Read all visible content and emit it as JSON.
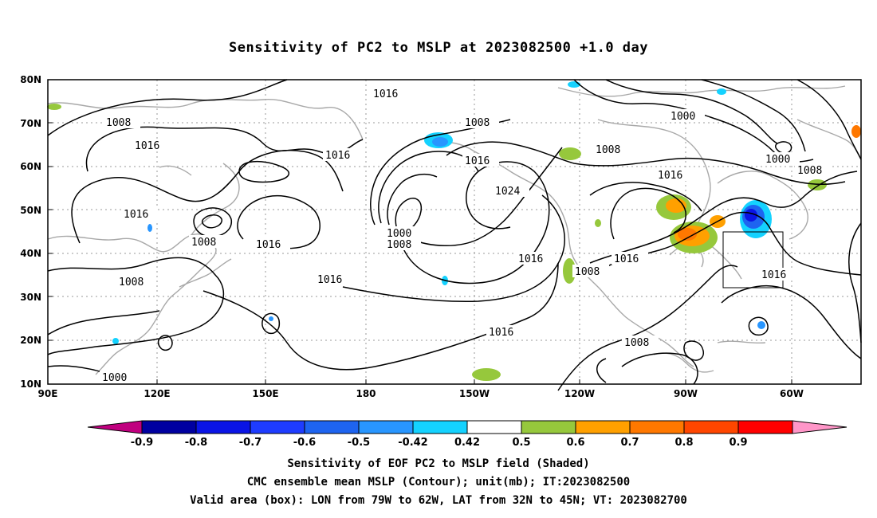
{
  "title": "Sensitivity of PC2 to MSLP at 2023082500 +1.0 day",
  "map": {
    "lat_labels": [
      "80N",
      "70N",
      "60N",
      "50N",
      "40N",
      "30N",
      "20N",
      "10N"
    ],
    "lon_labels": [
      "90E",
      "120E",
      "150E",
      "180",
      "150W",
      "120W",
      "90W",
      "60W"
    ],
    "contour_labels": [
      {
        "id": "c1",
        "text": "1016"
      },
      {
        "id": "c2",
        "text": "1008"
      },
      {
        "id": "c3",
        "text": "1016"
      },
      {
        "id": "c4",
        "text": "1008"
      },
      {
        "id": "c5",
        "text": "1000"
      },
      {
        "id": "c6",
        "text": "1016"
      },
      {
        "id": "c7",
        "text": "1016"
      },
      {
        "id": "c8",
        "text": "1008"
      },
      {
        "id": "c9",
        "text": "1016"
      },
      {
        "id": "c10",
        "text": "1024"
      },
      {
        "id": "c11",
        "text": "1000"
      },
      {
        "id": "c12",
        "text": "1008"
      },
      {
        "id": "c13",
        "text": "1016"
      },
      {
        "id": "c14",
        "text": "1008"
      },
      {
        "id": "c15",
        "text": "1016"
      },
      {
        "id": "c16",
        "text": "1008"
      },
      {
        "id": "c17",
        "text": "1016"
      },
      {
        "id": "c18",
        "text": "1016"
      },
      {
        "id": "c19",
        "text": "1008"
      },
      {
        "id": "c20",
        "text": "1008"
      },
      {
        "id": "c21",
        "text": "1016"
      },
      {
        "id": "c22",
        "text": "1000"
      },
      {
        "id": "c23",
        "text": "1008"
      },
      {
        "id": "c24",
        "text": "1000"
      },
      {
        "id": "c25",
        "text": "1016"
      }
    ],
    "valid_box": {
      "lon_west": "79W",
      "lon_east": "62W",
      "lat_south": "32N",
      "lat_north": "45N"
    }
  },
  "colorbar": {
    "labels": [
      "-0.9",
      "-0.8",
      "-0.7",
      "-0.6",
      "-0.5",
      "-0.42",
      "0.42",
      "0.5",
      "0.6",
      "0.7",
      "0.8",
      "0.9"
    ],
    "colors": [
      "#c0007f",
      "#0000a0",
      "#0a14e6",
      "#1e3cff",
      "#1e64f0",
      "#2896ff",
      "#14d2ff",
      "#ffffff",
      "#96c83c",
      "#ffa000",
      "#ff7800",
      "#ff4600",
      "#ff0000",
      "#ff96c8"
    ]
  },
  "captions": {
    "line1": "Sensitivity of EOF PC2 to MSLP field (Shaded)",
    "line2": "CMC ensemble mean MSLP (Contour); unit(mb); IT:2023082500",
    "line3": "Valid area (box): LON from 79W to 62W, LAT from 32N to 45N; VT: 2023082700"
  }
}
